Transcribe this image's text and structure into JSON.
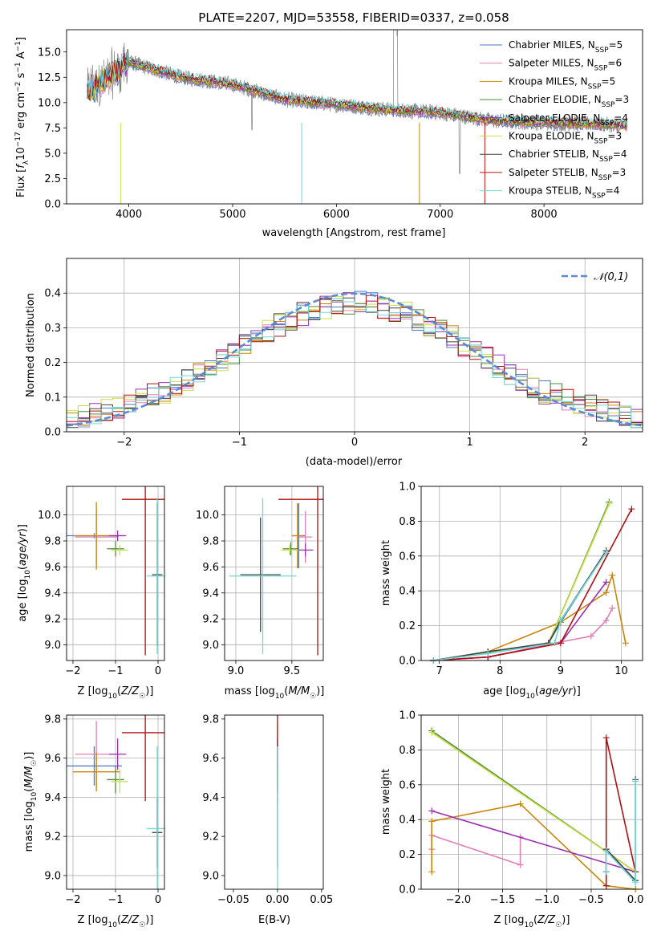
{
  "chart_data": [
    {
      "id": "spectrum",
      "type": "line",
      "title": "PLATE=2207, MJD=53558, FIBERID=0337, z=0.058",
      "xlabel": "wavelength [Angstrom, rest frame]",
      "ylabel": "Flux [f_λ 10^-17 erg cm^-2 s^-1 A^-1]",
      "xlim": [
        3400,
        8950
      ],
      "ylim": [
        0,
        17.2
      ],
      "xticks": [
        4000,
        5000,
        6000,
        7000,
        8000
      ],
      "yticks": [
        0.0,
        2.5,
        5.0,
        7.5,
        10.0,
        12.5,
        15.0
      ],
      "legend": "top-right",
      "series": [
        {
          "name": "Chabrier MILES, N_SSP=5",
          "color": "#4a78c8"
        },
        {
          "name": "Salpeter MILES, N_SSP=6",
          "color": "#e27fb8"
        },
        {
          "name": "Kroupa MILES, N_SSP=5",
          "color": "#c8860a"
        },
        {
          "name": "Chabrier ELODIE, N_SSP=3",
          "color": "#4a8a3a"
        },
        {
          "name": "Salpeter ELODIE, N_SSP=4",
          "color": "#9b2fb0"
        },
        {
          "name": "Kroupa ELODIE, N_SSP=3",
          "color": "#c8e040"
        },
        {
          "name": "Chabrier STELIB, N_SSP=4",
          "color": "#444444"
        },
        {
          "name": "Salpeter STELIB, N_SSP=3",
          "color": "#b01010"
        },
        {
          "name": "Kroupa STELIB, N_SSP=4",
          "color": "#70d8d8"
        }
      ],
      "model_trend": {
        "x": [
          3600,
          4000,
          4500,
          5000,
          5500,
          6000,
          6500,
          7000,
          7500,
          8000,
          8500,
          8800
        ],
        "y": [
          11.0,
          14.0,
          12.5,
          11.8,
          10.3,
          9.8,
          9.3,
          9.0,
          8.2,
          8.0,
          7.9,
          7.7
        ]
      }
    },
    {
      "id": "residuals",
      "type": "step",
      "xlabel": "(data-model)/error",
      "ylabel": "Normed distribution",
      "xlim": [
        -2.5,
        2.5
      ],
      "ylim": [
        0,
        0.5
      ],
      "xticks": [
        -2,
        -1,
        0,
        1,
        2
      ],
      "yticks": [
        0.0,
        0.1,
        0.2,
        0.3,
        0.4
      ],
      "grid": true,
      "legend": "top-right",
      "reference": {
        "name": "𝒩(0,1)",
        "color": "#5a8ad8"
      },
      "bin_width": 0.1
    },
    {
      "id": "age-vs-Z",
      "type": "errorbar",
      "xlabel": "Z [log10(Z/Z☉)]",
      "ylabel": "age [log10(age/yr)]",
      "xlim": [
        -2.15,
        0.15
      ],
      "ylim": [
        8.88,
        10.22
      ],
      "xticks": [
        -2,
        -1,
        0
      ],
      "yticks": [
        9.0,
        9.2,
        9.4,
        9.6,
        9.8,
        10.0
      ],
      "grid": true,
      "points": [
        {
          "x": -1.5,
          "xerr": 0.65,
          "y": 9.84,
          "yerr": 0.02,
          "color": "#4a78c8"
        },
        {
          "x": -1.45,
          "xerr": 0.5,
          "y": 9.83,
          "yerr": 0.22,
          "color": "#e27fb8"
        },
        {
          "x": -1.45,
          "xerr": 0.55,
          "y": 9.84,
          "yerr": 0.26,
          "color": "#c8860a"
        },
        {
          "x": -1.0,
          "xerr": 0.2,
          "y": 9.74,
          "yerr": 0.06,
          "color": "#4a8a3a"
        },
        {
          "x": -0.95,
          "xerr": 0.2,
          "y": 9.84,
          "yerr": 0.04,
          "color": "#9b2fb0"
        },
        {
          "x": -0.9,
          "xerr": 0.2,
          "y": 9.73,
          "yerr": 0.04,
          "color": "#c8e040"
        },
        {
          "x": -0.02,
          "xerr": 0.12,
          "y": 9.54,
          "yerr": 0.55,
          "color": "#444444"
        },
        {
          "x": -0.3,
          "xerr": 0.55,
          "y": 10.12,
          "yerr": 1.2,
          "color": "#b01010"
        },
        {
          "x": -0.02,
          "xerr": 0.25,
          "y": 9.53,
          "yerr": 0.6,
          "color": "#70d8d8"
        }
      ]
    },
    {
      "id": "age-vs-mass",
      "type": "errorbar",
      "xlabel": "mass [log10(M/M☉)]",
      "ylabel": "",
      "xlim": [
        8.9,
        9.78
      ],
      "ylim": [
        8.88,
        10.22
      ],
      "xticks": [
        9.0,
        9.5
      ],
      "yticks": [
        9.0,
        9.2,
        9.4,
        9.6,
        9.8,
        10.0
      ],
      "grid": true,
      "points": [
        {
          "x": 9.56,
          "xerr": 0.06,
          "y": 9.84,
          "yerr": 0.25,
          "color": "#4a78c8"
        },
        {
          "x": 9.62,
          "xerr": 0.06,
          "y": 9.83,
          "yerr": 0.2,
          "color": "#e27fb8"
        },
        {
          "x": 9.55,
          "xerr": 0.05,
          "y": 9.84,
          "yerr": 0.25,
          "color": "#c8860a"
        },
        {
          "x": 9.49,
          "xerr": 0.07,
          "y": 9.74,
          "yerr": 0.05,
          "color": "#4a8a3a"
        },
        {
          "x": 9.62,
          "xerr": 0.07,
          "y": 9.73,
          "yerr": 0.05,
          "color": "#9b2fb0"
        },
        {
          "x": 9.48,
          "xerr": 0.08,
          "y": 9.73,
          "yerr": 0.04,
          "color": "#c8e040"
        },
        {
          "x": 9.22,
          "xerr": 0.18,
          "y": 9.54,
          "yerr": 0.44,
          "color": "#444444"
        },
        {
          "x": 9.73,
          "xerr": 0.35,
          "y": 10.12,
          "yerr": 1.2,
          "color": "#b01010"
        },
        {
          "x": 9.24,
          "xerr": 0.3,
          "y": 9.53,
          "yerr": 0.6,
          "color": "#70d8d8"
        }
      ]
    },
    {
      "id": "weight-vs-age",
      "type": "line",
      "xlabel": "age [log10(age/yr)]",
      "ylabel": "mass weight",
      "xlim": [
        6.7,
        10.35
      ],
      "ylim": [
        0,
        1.0
      ],
      "xticks": [
        7,
        8,
        9,
        10
      ],
      "yticks": [
        0.0,
        0.2,
        0.4,
        0.6,
        0.8,
        1.0
      ],
      "grid": true,
      "series": [
        {
          "color": "#4a78c8",
          "x": [
            6.9,
            7.8,
            8.8,
            9.0,
            9.75
          ],
          "y": [
            0.0,
            0.05,
            0.1,
            0.22,
            0.63
          ]
        },
        {
          "color": "#e27fb8",
          "x": [
            6.9,
            7.8,
            8.9,
            9.5,
            9.75,
            9.85
          ],
          "y": [
            0.0,
            0.02,
            0.1,
            0.14,
            0.23,
            0.3
          ]
        },
        {
          "color": "#c8860a",
          "x": [
            6.9,
            7.8,
            9.0,
            9.75,
            9.85,
            10.07
          ],
          "y": [
            0.0,
            0.05,
            0.22,
            0.39,
            0.49,
            0.1
          ]
        },
        {
          "color": "#4a8a3a",
          "x": [
            6.9,
            8.8,
            9.8
          ],
          "y": [
            0.0,
            0.1,
            0.91
          ]
        },
        {
          "color": "#9b2fb0",
          "x": [
            6.9,
            7.8,
            9.0,
            9.75
          ],
          "y": [
            0.0,
            0.02,
            0.1,
            0.45
          ]
        },
        {
          "color": "#c8e040",
          "x": [
            6.9,
            8.8,
            9.8
          ],
          "y": [
            0.0,
            0.1,
            0.9
          ]
        },
        {
          "color": "#444444",
          "x": [
            6.9,
            7.8,
            8.8,
            9.0,
            9.75
          ],
          "y": [
            0.0,
            0.05,
            0.1,
            0.23,
            0.63
          ]
        },
        {
          "color": "#b01010",
          "x": [
            6.9,
            7.8,
            9.0,
            10.17
          ],
          "y": [
            0.0,
            0.02,
            0.1,
            0.87
          ]
        },
        {
          "color": "#70d8d8",
          "x": [
            6.9,
            7.8,
            8.9,
            9.0,
            9.75
          ],
          "y": [
            0.0,
            0.04,
            0.1,
            0.23,
            0.62
          ]
        }
      ]
    },
    {
      "id": "mass-vs-Z",
      "type": "errorbar",
      "xlabel": "Z [log10(Z/Z☉)]",
      "ylabel": "mass [log10(M/M☉)]",
      "xlim": [
        -2.15,
        0.15
      ],
      "ylim": [
        8.93,
        9.82
      ],
      "xticks": [
        -2,
        -1,
        0
      ],
      "yticks": [
        9.0,
        9.2,
        9.4,
        9.6,
        9.8
      ],
      "grid": true,
      "points": [
        {
          "x": -1.5,
          "xerr": 0.65,
          "y": 9.56,
          "yerr": 0.1,
          "color": "#4a78c8"
        },
        {
          "x": -1.45,
          "xerr": 0.5,
          "y": 9.62,
          "yerr": 0.17,
          "color": "#e27fb8"
        },
        {
          "x": -1.45,
          "xerr": 0.55,
          "y": 9.53,
          "yerr": 0.1,
          "color": "#c8860a"
        },
        {
          "x": -1.0,
          "xerr": 0.2,
          "y": 9.49,
          "yerr": 0.07,
          "color": "#4a8a3a"
        },
        {
          "x": -0.95,
          "xerr": 0.2,
          "y": 9.62,
          "yerr": 0.08,
          "color": "#9b2fb0"
        },
        {
          "x": -0.9,
          "xerr": 0.2,
          "y": 9.48,
          "yerr": 0.06,
          "color": "#c8e040"
        },
        {
          "x": -0.02,
          "xerr": 0.12,
          "y": 9.22,
          "yerr": 0.18,
          "color": "#444444"
        },
        {
          "x": -0.3,
          "xerr": 0.55,
          "y": 9.73,
          "yerr": 0.35,
          "color": "#b01010"
        },
        {
          "x": -0.02,
          "xerr": 0.25,
          "y": 9.24,
          "yerr": 0.42,
          "color": "#70d8d8"
        }
      ]
    },
    {
      "id": "mass-vs-EBV",
      "type": "errorbar",
      "xlabel": "E(B-V)",
      "ylabel": "",
      "xlim": [
        -0.06,
        0.052
      ],
      "ylim": [
        8.93,
        9.82
      ],
      "xticks": [
        -0.05,
        0.0,
        0.05
      ],
      "yticks": [
        9.0,
        9.2,
        9.4,
        9.6,
        9.8
      ],
      "grid": false,
      "points": [
        {
          "x": 0.0,
          "xerr": 0.0,
          "y": 9.56,
          "yerr": 0.1,
          "color": "#4a78c8"
        },
        {
          "x": 0.0,
          "xerr": 0.0,
          "y": 9.62,
          "yerr": 0.17,
          "color": "#e27fb8"
        },
        {
          "x": 0.0,
          "xerr": 0.0,
          "y": 9.53,
          "yerr": 0.1,
          "color": "#c8860a"
        },
        {
          "x": 0.0,
          "xerr": 0.0,
          "y": 9.49,
          "yerr": 0.07,
          "color": "#4a8a3a"
        },
        {
          "x": 0.0,
          "xerr": 0.0,
          "y": 9.62,
          "yerr": 0.08,
          "color": "#9b2fb0"
        },
        {
          "x": 0.0,
          "xerr": 0.0,
          "y": 9.48,
          "yerr": 0.06,
          "color": "#c8e040"
        },
        {
          "x": 0.0,
          "xerr": 0.0,
          "y": 9.22,
          "yerr": 0.18,
          "color": "#444444"
        },
        {
          "x": 0.0,
          "xerr": 0.0,
          "y": 9.73,
          "yerr": 0.35,
          "color": "#b01010"
        },
        {
          "x": 0.0,
          "xerr": 0.0,
          "y": 9.24,
          "yerr": 0.42,
          "color": "#70d8d8"
        }
      ]
    },
    {
      "id": "weight-vs-Z",
      "type": "line",
      "xlabel": "Z [log10(Z/Z☉)]",
      "ylabel": "mass weight",
      "xlim": [
        -2.42,
        0.08
      ],
      "ylim": [
        0,
        1.0
      ],
      "xticks": [
        -2.0,
        -1.5,
        -1.0,
        -0.5,
        0.0
      ],
      "yticks": [
        0.0,
        0.2,
        0.4,
        0.6,
        0.8,
        1.0
      ],
      "grid": true,
      "series": [
        {
          "color": "#4a78c8",
          "x": [
            -0.33,
            -0.33,
            0.0,
            0.0
          ],
          "y": [
            0.1,
            0.23,
            0.05,
            0.62
          ]
        },
        {
          "color": "#e27fb8",
          "x": [
            -2.3,
            -2.3,
            -1.3,
            -1.3
          ],
          "y": [
            0.23,
            0.31,
            0.14,
            0.3
          ]
        },
        {
          "color": "#c8860a",
          "x": [
            -2.3,
            -2.3,
            -1.3,
            -0.33,
            0.0
          ],
          "y": [
            0.1,
            0.39,
            0.49,
            0.02,
            0.0
          ]
        },
        {
          "color": "#4a8a3a",
          "x": [
            -2.3,
            0.0
          ],
          "y": [
            0.91,
            0.1
          ]
        },
        {
          "color": "#9b2fb0",
          "x": [
            -2.3,
            0.0
          ],
          "y": [
            0.45,
            0.1
          ]
        },
        {
          "color": "#c8e040",
          "x": [
            -2.3,
            0.0
          ],
          "y": [
            0.9,
            0.1
          ]
        },
        {
          "color": "#444444",
          "x": [
            -0.33,
            -0.33,
            0.0,
            0.0
          ],
          "y": [
            0.1,
            0.23,
            0.05,
            0.63
          ]
        },
        {
          "color": "#b01010",
          "x": [
            -0.33,
            -0.33,
            0.0
          ],
          "y": [
            0.02,
            0.87,
            0.1
          ]
        },
        {
          "color": "#70d8d8",
          "x": [
            -0.33,
            -0.33,
            0.0,
            0.0
          ],
          "y": [
            0.1,
            0.22,
            0.04,
            0.62
          ]
        }
      ]
    }
  ]
}
